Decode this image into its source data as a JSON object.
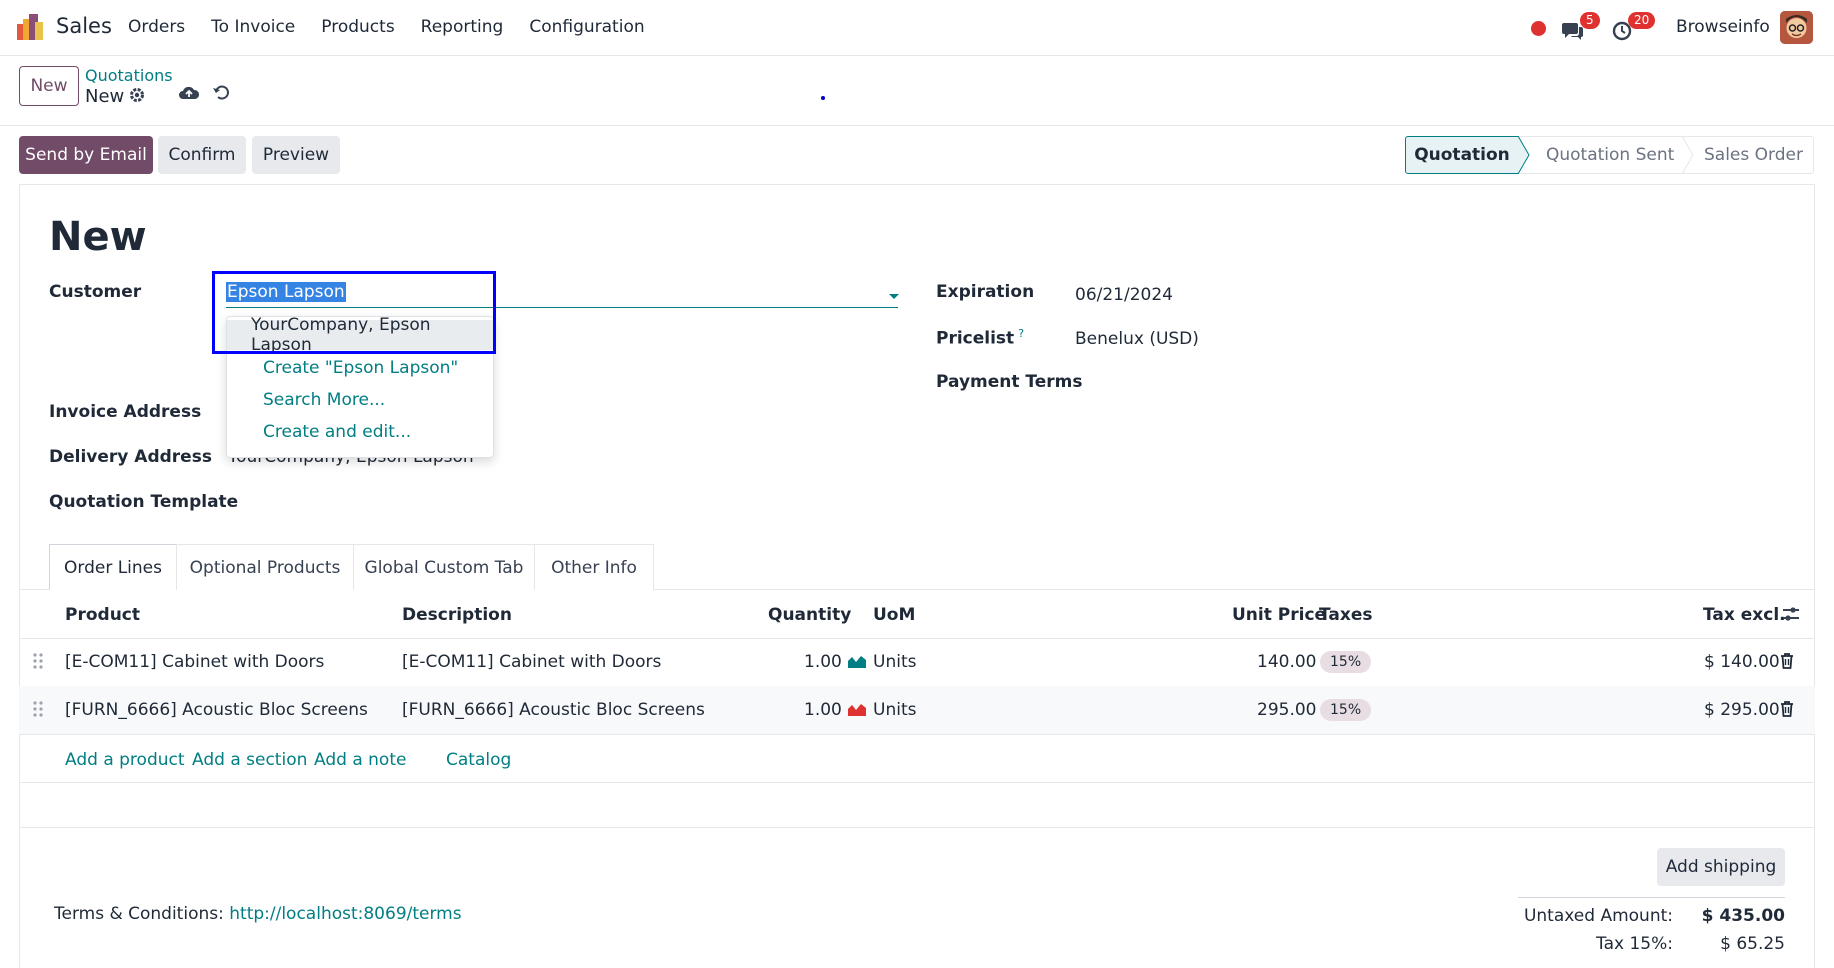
{
  "navbar": {
    "app_name": "Sales",
    "menu": [
      "Orders",
      "To Invoice",
      "Products",
      "Reporting",
      "Configuration"
    ],
    "messages_count": "5",
    "activities_count": "20",
    "user_name": "Browseinfo"
  },
  "control_panel": {
    "new_label": "New",
    "breadcrumb_parent": "Quotations",
    "breadcrumb_current": "New"
  },
  "actions": {
    "send_email": "Send by Email",
    "confirm": "Confirm",
    "preview": "Preview"
  },
  "statusbar": {
    "stages": [
      "Quotation",
      "Quotation Sent",
      "Sales Order"
    ],
    "active": "Quotation"
  },
  "form": {
    "title": "New",
    "customer_label": "Customer",
    "customer_value": "Epson Lapson",
    "invoice_address_label": "Invoice Address",
    "delivery_address_label": "Delivery Address",
    "delivery_address_value": "YourCompany, Epson Lapson",
    "quotation_template_label": "Quotation Template",
    "expiration_label": "Expiration",
    "expiration_value": "06/21/2024",
    "pricelist_label": "Pricelist",
    "pricelist_help": "?",
    "pricelist_value": "Benelux (USD)",
    "payment_terms_label": "Payment Terms"
  },
  "autocomplete": {
    "items": [
      "YourCompany, Epson Lapson"
    ],
    "create": "Create \"Epson Lapson\"",
    "search_more": "Search More...",
    "create_edit": "Create and edit..."
  },
  "tabs": [
    "Order Lines",
    "Optional Products",
    "Global Custom Tab",
    "Other Info"
  ],
  "order_lines": {
    "headers": {
      "product": "Product",
      "description": "Description",
      "quantity": "Quantity",
      "uom": "UoM",
      "unit_price": "Unit Price",
      "taxes": "Taxes",
      "tax_excl": "Tax excl."
    },
    "rows": [
      {
        "product": "[E-COM11] Cabinet with Doors",
        "description": "[E-COM11] Cabinet with Doors",
        "quantity": "1.00",
        "uom": "Units",
        "unit_price": "140.00",
        "tax": "15%",
        "subtotal": "$ 140.00",
        "uom_icon_color": "#017e84"
      },
      {
        "product": "[FURN_6666] Acoustic Bloc Screens",
        "description": "[FURN_6666] Acoustic Bloc Screens",
        "quantity": "1.00",
        "uom": "Units",
        "unit_price": "295.00",
        "tax": "15%",
        "subtotal": "$ 295.00",
        "uom_icon_color": "#e03131"
      }
    ],
    "add_product": "Add a product",
    "add_section": "Add a section",
    "add_note": "Add a note",
    "catalog": "Catalog"
  },
  "footer": {
    "add_shipping": "Add shipping",
    "terms_label": "Terms & Conditions: ",
    "terms_link": "http://localhost:8069/terms",
    "untaxed_label": "Untaxed Amount:",
    "untaxed_value": "$ 435.00",
    "tax_label": "Tax 15%:",
    "tax_value": "$ 65.25"
  },
  "colors": {
    "primary": "#714b67",
    "link": "#017e84",
    "highlight": "#0000ff",
    "badge": "#e03131"
  }
}
